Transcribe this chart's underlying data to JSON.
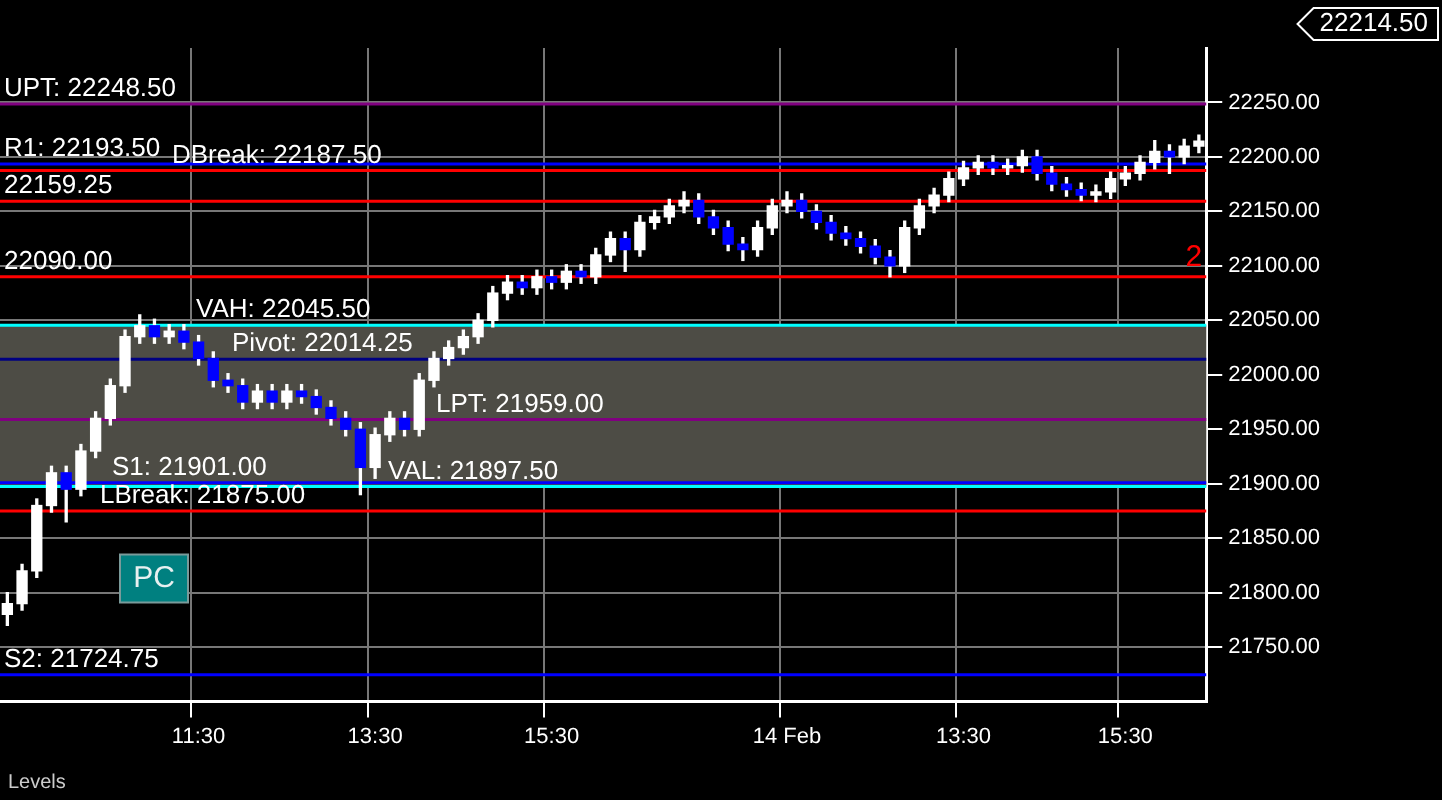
{
  "chart_data": {
    "type": "candlestick",
    "categories": [
      null,
      null,
      null,
      null,
      null,
      null,
      null,
      null,
      null,
      null,
      null,
      null,
      null,
      "11:30",
      null,
      null,
      null,
      null,
      null,
      null,
      null,
      null,
      null,
      null,
      null,
      "13:30",
      null,
      null,
      null,
      null,
      null,
      null,
      null,
      null,
      null,
      null,
      null,
      "15:30",
      null,
      null,
      null,
      null,
      null,
      null,
      null,
      null,
      null,
      null,
      null,
      null,
      null,
      null,
      null,
      "14 Feb",
      null,
      null,
      null,
      null,
      null,
      null,
      null,
      null,
      null,
      null,
      null,
      "13:30",
      null,
      null,
      null,
      null,
      null,
      null,
      null,
      null,
      null,
      null,
      "15:30",
      null,
      null,
      null,
      null,
      null
    ],
    "ohlc": [
      [
        21780,
        21800,
        21770,
        21790
      ],
      [
        21790,
        21826,
        21784,
        21820
      ],
      [
        21820,
        21886,
        21814,
        21880
      ],
      [
        21880,
        21916,
        21874,
        21910
      ],
      [
        21910,
        21916,
        21865,
        21895
      ],
      [
        21895,
        21936,
        21889,
        21930
      ],
      [
        21930,
        21966,
        21924,
        21960
      ],
      [
        21960,
        21996,
        21954,
        21990
      ],
      [
        21990,
        22041,
        21984,
        22035
      ],
      [
        22035,
        22055,
        22029,
        22045
      ],
      [
        22045,
        22051,
        22029,
        22035
      ],
      [
        22035,
        22046,
        22029,
        22040
      ],
      [
        22040,
        22046,
        22024,
        22030
      ],
      [
        22030,
        22036,
        22009,
        22015
      ],
      [
        22015,
        22021,
        21989,
        21995
      ],
      [
        21995,
        22001,
        21984,
        21990
      ],
      [
        21990,
        21996,
        21969,
        21975
      ],
      [
        21975,
        21991,
        21969,
        21985
      ],
      [
        21985,
        21991,
        21969,
        21975
      ],
      [
        21975,
        21991,
        21969,
        21985
      ],
      [
        21985,
        21991,
        21974,
        21980
      ],
      [
        21980,
        21986,
        21964,
        21970
      ],
      [
        21970,
        21976,
        21954,
        21960
      ],
      [
        21960,
        21966,
        21944,
        21950
      ],
      [
        21950,
        21956,
        21890,
        21915
      ],
      [
        21915,
        21951,
        21905,
        21945
      ],
      [
        21945,
        21966,
        21939,
        21960
      ],
      [
        21960,
        21966,
        21944,
        21950
      ],
      [
        21950,
        22001,
        21944,
        21995
      ],
      [
        21995,
        22021,
        21989,
        22015
      ],
      [
        22015,
        22031,
        22009,
        22025
      ],
      [
        22025,
        22041,
        22019,
        22035
      ],
      [
        22035,
        22056,
        22029,
        22050
      ],
      [
        22050,
        22081,
        22044,
        22075
      ],
      [
        22075,
        22091,
        22069,
        22085
      ],
      [
        22085,
        22091,
        22074,
        22080
      ],
      [
        22080,
        22096,
        22074,
        22090
      ],
      [
        22090,
        22096,
        22079,
        22085
      ],
      [
        22085,
        22101,
        22079,
        22095
      ],
      [
        22095,
        22101,
        22084,
        22090
      ],
      [
        22090,
        22116,
        22084,
        22110
      ],
      [
        22110,
        22131,
        22104,
        22125
      ],
      [
        22125,
        22131,
        22095,
        22115
      ],
      [
        22115,
        22146,
        22109,
        22140
      ],
      [
        22140,
        22151,
        22134,
        22145
      ],
      [
        22145,
        22161,
        22139,
        22155
      ],
      [
        22155,
        22168,
        22149,
        22160
      ],
      [
        22160,
        22166,
        22139,
        22145
      ],
      [
        22145,
        22151,
        22129,
        22135
      ],
      [
        22135,
        22141,
        22114,
        22120
      ],
      [
        22120,
        22126,
        22105,
        22115
      ],
      [
        22115,
        22141,
        22109,
        22135
      ],
      [
        22135,
        22161,
        22129,
        22155
      ],
      [
        22155,
        22168,
        22149,
        22160
      ],
      [
        22160,
        22166,
        22144,
        22150
      ],
      [
        22150,
        22156,
        22134,
        22140
      ],
      [
        22140,
        22146,
        22124,
        22130
      ],
      [
        22130,
        22136,
        22119,
        22125
      ],
      [
        22125,
        22131,
        22112,
        22118
      ],
      [
        22118,
        22124,
        22102,
        22108
      ],
      [
        22108,
        22114,
        22090,
        22100
      ],
      [
        22100,
        22141,
        22094,
        22135
      ],
      [
        22135,
        22161,
        22129,
        22155
      ],
      [
        22155,
        22171,
        22149,
        22165
      ],
      [
        22165,
        22186,
        22159,
        22180
      ],
      [
        22180,
        22196,
        22174,
        22190
      ],
      [
        22190,
        22201,
        22184,
        22195
      ],
      [
        22195,
        22201,
        22184,
        22190
      ],
      [
        22190,
        22198,
        22184,
        22192
      ],
      [
        22192,
        22206,
        22186,
        22200
      ],
      [
        22200,
        22206,
        22179,
        22185
      ],
      [
        22185,
        22191,
        22169,
        22175
      ],
      [
        22175,
        22181,
        22164,
        22170
      ],
      [
        22170,
        22176,
        22160,
        22165
      ],
      [
        22165,
        22174,
        22159,
        22168
      ],
      [
        22168,
        22186,
        22162,
        22180
      ],
      [
        22180,
        22191,
        22174,
        22185
      ],
      [
        22185,
        22201,
        22179,
        22195
      ],
      [
        22195,
        22215,
        22189,
        22205
      ],
      [
        22205,
        22211,
        22185,
        22200
      ],
      [
        22200,
        22216,
        22194,
        22210
      ],
      [
        22210,
        22220,
        22204,
        22214.5
      ]
    ],
    "ylim": [
      21700,
      22300
    ],
    "yticks": [
      {
        "value": 21750,
        "label": "21750.00"
      },
      {
        "value": 21800,
        "label": "21800.00"
      },
      {
        "value": 21850,
        "label": "21850.00"
      },
      {
        "value": 21900,
        "label": "21900.00"
      },
      {
        "value": 21950,
        "label": "21950.00"
      },
      {
        "value": 22000,
        "label": "22000.00"
      },
      {
        "value": 22050,
        "label": "22050.00"
      },
      {
        "value": 22100,
        "label": "22100.00"
      },
      {
        "value": 22150,
        "label": "22150.00"
      },
      {
        "value": 22200,
        "label": "22200.00"
      },
      {
        "value": 22250,
        "label": "22250.00"
      }
    ],
    "grid": true,
    "legend": false,
    "bands": [
      {
        "axis": "y",
        "from": 21897.5,
        "to": 22045.5,
        "color": "#4d4c45"
      }
    ],
    "ref_lines": [
      {
        "axis": "y",
        "value": 22248.5,
        "label": "UPT: 22248.50",
        "color": "#800080"
      },
      {
        "axis": "y",
        "value": 22193.5,
        "label": "R1: 22193.50",
        "color": "#0000ff"
      },
      {
        "axis": "y",
        "value": 22187.5,
        "label": "DBreak: 22187.50",
        "color": "#ff0000"
      },
      {
        "axis": "y",
        "value": 22159.25,
        "label": "22159.25",
        "color": "#ff0000"
      },
      {
        "axis": "y",
        "value": 22090,
        "label": "22090.00",
        "color": "#ff0000"
      },
      {
        "axis": "y",
        "value": 22045.5,
        "label": "VAH: 22045.50",
        "color": "#00ffff"
      },
      {
        "axis": "y",
        "value": 22014.25,
        "label": "Pivot: 22014.25",
        "color": "#000080"
      },
      {
        "axis": "y",
        "value": 21959,
        "label": "LPT: 21959.00",
        "color": "#800080"
      },
      {
        "axis": "y",
        "value": 21901,
        "label": "S1: 21901.00",
        "color": "#0000ff"
      },
      {
        "axis": "y",
        "value": 21897.5,
        "label": "VAL: 21897.50",
        "color": "#00ffff"
      },
      {
        "axis": "y",
        "value": 21875,
        "label": "LBreak: 21875.00",
        "color": "#ff0000"
      },
      {
        "axis": "y",
        "value": 21724.75,
        "label": "S2: 21724.75",
        "color": "#0000ff"
      }
    ],
    "annotations": [
      "PC",
      "Levels",
      "22214.50",
      {
        "text": "2",
        "y": 22090
      }
    ]
  }
}
